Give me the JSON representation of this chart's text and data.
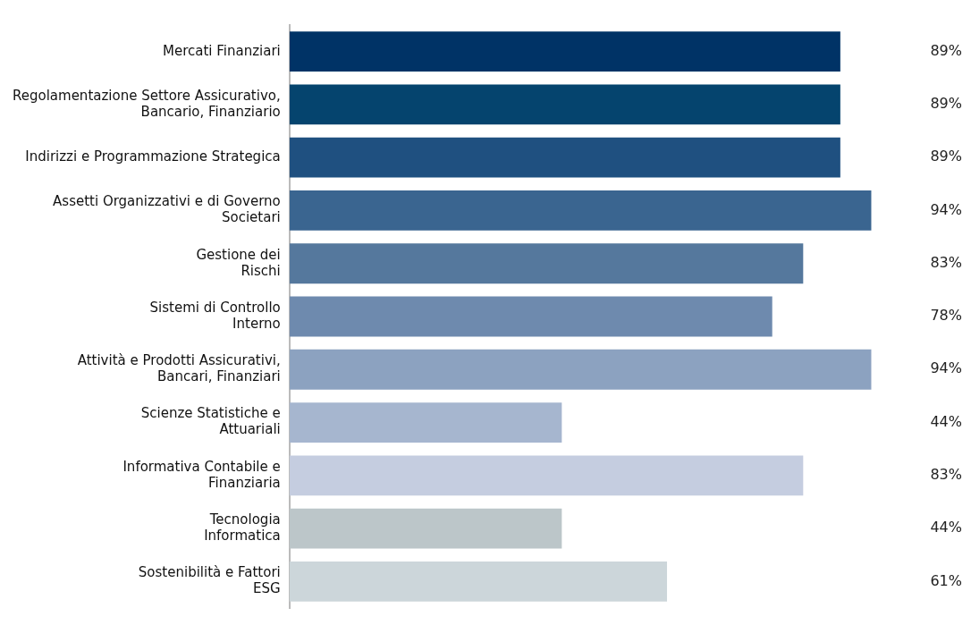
{
  "chart_data": {
    "type": "bar",
    "orientation": "horizontal",
    "legend": false,
    "tick_labels": "y",
    "categories": [
      "Mercati Finanziari",
      "Regolamentazione Settore Assicurativo,\nBancario, Finanziario",
      "Indirizzi e Programmazione Strategica",
      "Assetti Organizzativi e di Governo\nSocietari",
      "Gestione dei\nRischi",
      "Sistemi di Controllo\nInterno",
      "Attività e Prodotti Assicurativi,\nBancari, Finanziari",
      "Scienze Statistiche e\nAttuariali",
      "Informativa Contabile e\nFinanziaria",
      "Tecnologia\nInformatica",
      "Sostenibilità e Fattori\nESG"
    ],
    "values": [
      89,
      89,
      89,
      94,
      83,
      78,
      94,
      44,
      83,
      44,
      61
    ],
    "value_labels": [
      "89%",
      "89%",
      "89%",
      "94%",
      "83%",
      "78%",
      "94%",
      "44%",
      "83%",
      "44%",
      "61%"
    ],
    "colors": [
      "#003366",
      "#05446e",
      "#1f5080",
      "#3a6590",
      "#55789d",
      "#6e8aae",
      "#8ca2c0",
      "#a6b6cf",
      "#c5cde0",
      "#bcc6c9",
      "#ccd6da"
    ]
  }
}
